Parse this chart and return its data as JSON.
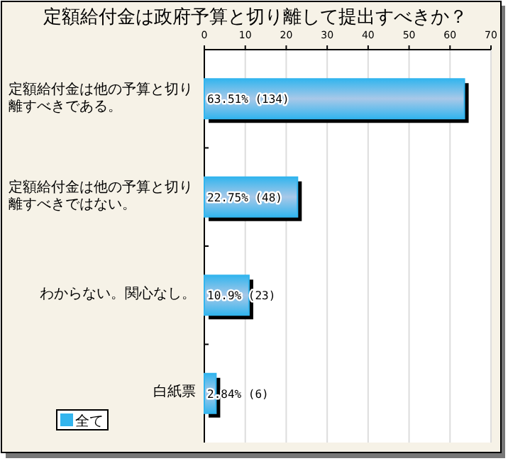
{
  "chart_data": {
    "type": "bar",
    "orientation": "horizontal",
    "title": "定額給付金は政府予算と切り離して提出すべきか？",
    "categories": [
      "定額給付金は他の予算と切り離すべきである。",
      "定額給付金は他の予算と切り離すべきではない。",
      "わからない。関心なし。",
      "白紙票"
    ],
    "series": [
      {
        "name": "全て",
        "color": "#33b5ee",
        "values": [
          63.51,
          22.75,
          10.9,
          2.84
        ]
      }
    ],
    "value_labels": [
      "63.51% (134)",
      "22.75% (48)",
      "10.9% (23)",
      "2.84% (6)"
    ],
    "xlim": [
      0,
      70
    ],
    "xticks": [
      0,
      10,
      20,
      30,
      40,
      50,
      60,
      70
    ],
    "grid": "x",
    "legend": "bottom left"
  }
}
